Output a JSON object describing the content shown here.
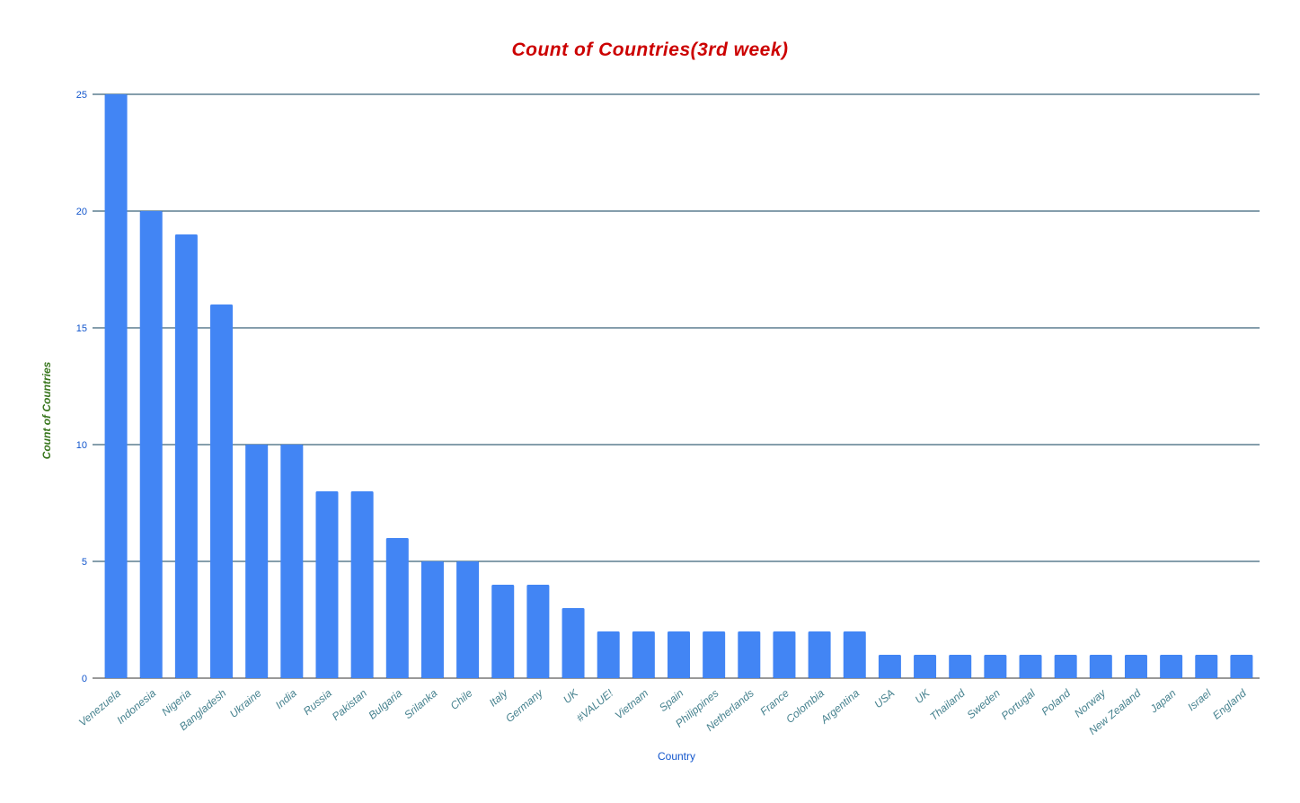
{
  "chart_data": {
    "type": "bar",
    "title": "Count of Countries(3rd week)",
    "xlabel": "Country",
    "ylabel": "Count of Countries",
    "ylim": [
      0,
      25
    ],
    "yticks": [
      0,
      5,
      10,
      15,
      20,
      25
    ],
    "grid": true,
    "legend": "none",
    "categories": [
      "Venezuela",
      "Indonesia",
      "Nigeria",
      "Bangladesh",
      "Ukraine",
      "India",
      "Russia",
      "Pakistan",
      "Bulgaria",
      "Srilanka",
      "Chile",
      "Italy",
      "Germany",
      "UK",
      "#VALUE!",
      "Vietnam",
      "Spain",
      "Philippines",
      "Netherlands",
      "France",
      "Colombia",
      "Argentina",
      "USA",
      "UK",
      "Thailand",
      "Sweden",
      "Portugal",
      "Poland",
      "Norway",
      "New Zealand",
      "Japan",
      "Israel",
      "England"
    ],
    "series": [
      {
        "name": "Count of Countries",
        "values": [
          25,
          20,
          19,
          16,
          10,
          10,
          8,
          8,
          6,
          5,
          5,
          4,
          4,
          3,
          2,
          2,
          2,
          2,
          2,
          2,
          2,
          2,
          1,
          1,
          1,
          1,
          1,
          1,
          1,
          1,
          1,
          1,
          1
        ]
      }
    ],
    "colors": {
      "bar": "#4285f4",
      "title": "#cc0000",
      "ylabel": "#38761d",
      "axis_text": "#1155cc",
      "category_text": "#45818e",
      "gridline": "#0b3e5a"
    }
  }
}
